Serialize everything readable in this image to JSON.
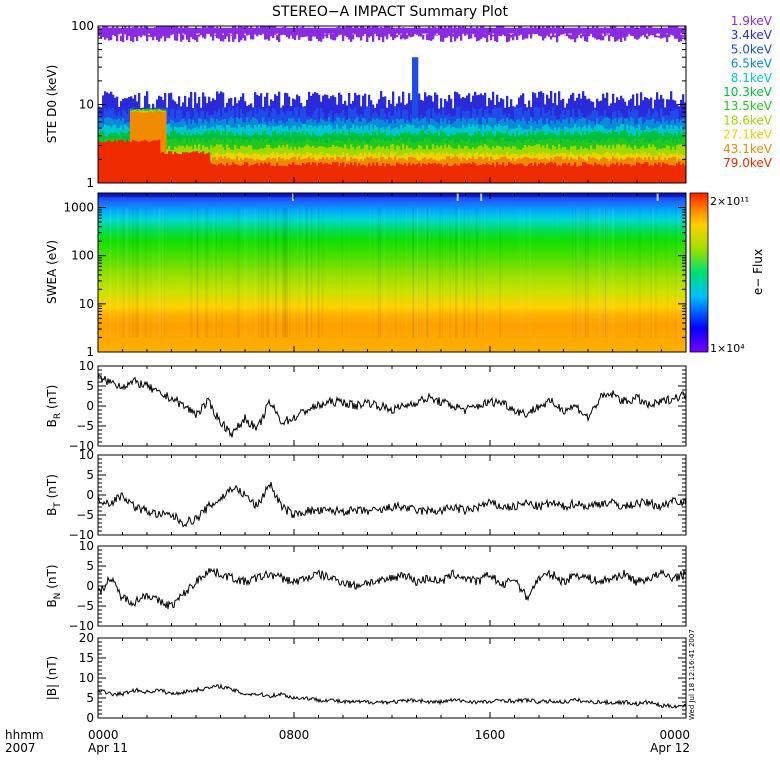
{
  "title": "STEREO−A IMPACT Summary Plot",
  "bottom_labels": {
    "left_top": "hhmm",
    "left_bottom": "2007"
  },
  "stamp": "Wed Jul 18 12:16:41 2007",
  "chart_data": [
    {
      "id": "ste",
      "type": "line",
      "ylabel": "STE D0 (keV)",
      "yscale": "log",
      "ylim": [
        1,
        100
      ],
      "yticks": [
        "1",
        "10",
        "100"
      ],
      "legend_placement": "right",
      "series": [
        {
          "name": "1.9keV",
          "color": "#8a2be2",
          "level": 95,
          "spread": 22
        },
        {
          "name": "3.4keV",
          "color": "#2a2ad8",
          "level": 11,
          "spread": 6
        },
        {
          "name": "5.0keV",
          "color": "#1f4be8",
          "level": 7.5,
          "spread": 3
        },
        {
          "name": "6.5keV",
          "color": "#0a8ad8",
          "level": 6.0,
          "spread": 1.4
        },
        {
          "name": "8.1keV",
          "color": "#00c8d2",
          "level": 5.0,
          "spread": 1.0
        },
        {
          "name": "10.3keV",
          "color": "#00c040",
          "level": 4.2,
          "spread": 0.8
        },
        {
          "name": "13.5keV",
          "color": "#20c820",
          "level": 3.4,
          "spread": 0.6
        },
        {
          "name": "18.6keV",
          "color": "#a0d800",
          "level": 2.8,
          "spread": 0.5
        },
        {
          "name": "27.1keV",
          "color": "#ecd400",
          "level": 2.3,
          "spread": 0.3
        },
        {
          "name": "43.1keV",
          "color": "#f08a00",
          "level": 2.0,
          "spread": 0.3
        },
        {
          "name": "79.0keV",
          "color": "#ee2a00",
          "level": 1.7,
          "spread": 0.25
        }
      ]
    },
    {
      "id": "swea",
      "type": "heatmap",
      "ylabel": "SWEA (eV)",
      "yscale": "log",
      "ylim": [
        1,
        2000
      ],
      "yticks": [
        "1",
        "10",
        "100",
        "1000"
      ],
      "colorbar": {
        "label": "e− Flux",
        "max_label": "2×10¹¹",
        "min_label": "1×10⁴"
      }
    },
    {
      "id": "br",
      "type": "line",
      "ylabel": "B_R (nT)",
      "ylim": [
        -10,
        10
      ],
      "yticks": [
        "−10",
        "−5",
        "0",
        "5",
        "10"
      ],
      "x": [
        0.0,
        0.5,
        1.0,
        1.5,
        2.0,
        2.5,
        3.0,
        3.5,
        4.0,
        4.5,
        5.0,
        5.5,
        6.0,
        6.5,
        7.0,
        7.5,
        8.0,
        8.5,
        9.0,
        9.5,
        10.0,
        10.5,
        11.0,
        11.5,
        12.0,
        12.5,
        13.0,
        13.5,
        14.0,
        14.5,
        15.0,
        15.5,
        16.0,
        16.5,
        17.0,
        17.5,
        18.0,
        18.5,
        19.0,
        19.5,
        20.0,
        20.5,
        21.0,
        21.5,
        22.0,
        22.5,
        23.0,
        23.5,
        24.0
      ],
      "values": [
        7,
        6,
        5,
        6,
        5,
        3,
        2,
        0,
        -2,
        1,
        -4,
        -7,
        -3,
        -6,
        1,
        -4,
        -3,
        -1,
        0,
        1,
        1,
        0,
        1,
        0,
        -1,
        0,
        1,
        2,
        1,
        0,
        -1,
        0,
        1,
        1,
        -1,
        -2,
        0,
        1,
        -1,
        0,
        -3,
        2,
        3,
        1,
        2,
        0,
        1,
        2,
        3
      ]
    },
    {
      "id": "bt",
      "type": "line",
      "ylabel": "B_T (nT)",
      "ylim": [
        -10,
        10
      ],
      "yticks": [
        "−10",
        "−5",
        "0",
        "5",
        "10"
      ],
      "x": [
        0.0,
        0.5,
        1.0,
        1.5,
        2.0,
        2.5,
        3.0,
        3.5,
        4.0,
        4.5,
        5.0,
        5.5,
        6.0,
        6.5,
        7.0,
        7.5,
        8.0,
        8.5,
        9.0,
        9.5,
        10.0,
        10.5,
        11.0,
        11.5,
        12.0,
        12.5,
        13.0,
        13.5,
        14.0,
        14.5,
        15.0,
        15.5,
        16.0,
        16.5,
        17.0,
        17.5,
        18.0,
        18.5,
        19.0,
        19.5,
        20.0,
        20.5,
        21.0,
        21.5,
        22.0,
        22.5,
        23.0,
        23.5,
        24.0
      ],
      "values": [
        -1,
        -2,
        0,
        -3,
        -4,
        -5,
        -5,
        -7,
        -6,
        -3,
        -1,
        2,
        0,
        -3,
        3,
        -3,
        -5,
        -4,
        -4,
        -4,
        -4,
        -4,
        -4,
        -4,
        -3,
        -3,
        -4,
        -4,
        -4,
        -3,
        -4,
        -3,
        -2,
        -3,
        -3,
        -2,
        -3,
        -2,
        -3,
        -2,
        -3,
        -2,
        -2,
        -3,
        -2,
        -2,
        -3,
        -1,
        -2
      ]
    },
    {
      "id": "bn",
      "type": "line",
      "ylabel": "B_N (nT)",
      "ylim": [
        -10,
        10
      ],
      "yticks": [
        "−10",
        "−5",
        "0",
        "5",
        "10"
      ],
      "x": [
        0.0,
        0.5,
        1.0,
        1.5,
        2.0,
        2.5,
        3.0,
        3.5,
        4.0,
        4.5,
        5.0,
        5.5,
        6.0,
        6.5,
        7.0,
        7.5,
        8.0,
        8.5,
        9.0,
        9.5,
        10.0,
        10.5,
        11.0,
        11.5,
        12.0,
        12.5,
        13.0,
        13.5,
        14.0,
        14.5,
        15.0,
        15.5,
        16.0,
        16.5,
        17.0,
        17.5,
        18.0,
        18.5,
        19.0,
        19.5,
        20.0,
        20.5,
        21.0,
        21.5,
        22.0,
        22.5,
        23.0,
        23.5,
        24.0
      ],
      "values": [
        -2,
        2,
        -3,
        -4,
        -2,
        -4,
        -5,
        -2,
        1,
        4,
        3,
        2,
        1,
        2,
        3,
        2,
        1,
        2,
        3,
        2,
        1,
        0,
        1,
        1,
        2,
        3,
        1,
        2,
        1,
        3,
        2,
        1,
        3,
        0,
        2,
        -3,
        2,
        3,
        1,
        3,
        2,
        1,
        2,
        3,
        1,
        2,
        3,
        2,
        3
      ]
    },
    {
      "id": "bmag",
      "type": "line",
      "ylabel": "|B| (nT)",
      "ylim": [
        0,
        20
      ],
      "yticks": [
        "0",
        "5",
        "10",
        "15",
        "20"
      ],
      "x": [
        0.0,
        0.5,
        1.0,
        1.5,
        2.0,
        2.5,
        3.0,
        3.5,
        4.0,
        4.5,
        5.0,
        5.5,
        6.0,
        6.5,
        7.0,
        7.5,
        8.0,
        8.5,
        9.0,
        9.5,
        10.0,
        10.5,
        11.0,
        11.5,
        12.0,
        12.5,
        13.0,
        13.5,
        14.0,
        14.5,
        15.0,
        15.5,
        16.0,
        16.5,
        17.0,
        17.5,
        18.0,
        18.5,
        19.0,
        19.5,
        20.0,
        20.5,
        21.0,
        21.5,
        22.0,
        22.5,
        23.0,
        23.5,
        24.0
      ],
      "values": [
        7,
        6,
        6,
        7,
        6.5,
        7,
        6,
        6.5,
        7,
        7.5,
        8,
        7,
        6,
        6,
        5.5,
        6,
        5,
        5,
        4.5,
        4.5,
        4,
        4,
        4,
        4,
        4,
        4.2,
        4.5,
        4,
        4,
        4.5,
        4.2,
        4,
        4,
        4.5,
        4.2,
        4.5,
        4,
        4.2,
        4,
        4.5,
        4,
        4,
        3.8,
        4,
        3.5,
        4,
        3,
        3,
        3
      ]
    }
  ],
  "x_axis": {
    "ticks": [
      {
        "hhmm": "0000",
        "date": "Apr 11"
      },
      {
        "hhmm": "0800",
        "date": ""
      },
      {
        "hhmm": "1600",
        "date": ""
      },
      {
        "hhmm": "0000",
        "date": "Apr 12"
      }
    ]
  }
}
